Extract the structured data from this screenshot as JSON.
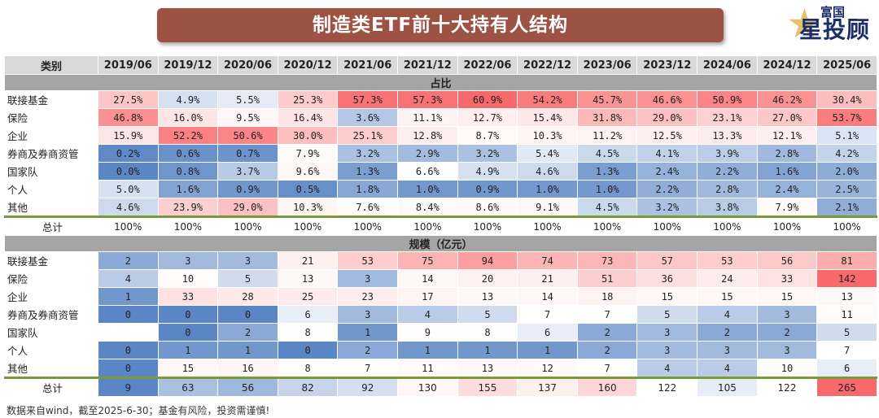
{
  "title": "制造类ETF前十大持有人结构",
  "logo": {
    "line1": "富国",
    "line2": "星投顾"
  },
  "table": {
    "header_label": "类别",
    "periods": [
      "2019/06",
      "2019/12",
      "2020/06",
      "2020/12",
      "2021/06",
      "2021/12",
      "2022/06",
      "2022/12",
      "2023/06",
      "2023/12",
      "2024/06",
      "2024/12",
      "2025/06"
    ],
    "share_section": {
      "label": "占比",
      "rows": [
        {
          "name": "联接基金",
          "values": [
            "27.5%",
            "4.9%",
            "5.5%",
            "25.3%",
            "57.3%",
            "57.3%",
            "60.9%",
            "54.2%",
            "45.7%",
            "46.6%",
            "50.9%",
            "46.2%",
            "30.4%"
          ],
          "nums": [
            27.5,
            4.9,
            5.5,
            25.3,
            57.3,
            57.3,
            60.9,
            54.2,
            45.7,
            46.6,
            50.9,
            46.2,
            30.4
          ]
        },
        {
          "name": "保险",
          "values": [
            "46.8%",
            "16.0%",
            "9.5%",
            "16.4%",
            "3.6%",
            "11.1%",
            "12.7%",
            "15.4%",
            "31.8%",
            "29.0%",
            "23.1%",
            "27.0%",
            "53.7%"
          ],
          "nums": [
            46.8,
            16.0,
            9.5,
            16.4,
            3.6,
            11.1,
            12.7,
            15.4,
            31.8,
            29.0,
            23.1,
            27.0,
            53.7
          ]
        },
        {
          "name": "企业",
          "values": [
            "15.9%",
            "52.2%",
            "50.6%",
            "30.0%",
            "25.1%",
            "12.8%",
            "8.7%",
            "10.3%",
            "11.2%",
            "12.5%",
            "13.3%",
            "12.1%",
            "5.1%"
          ],
          "nums": [
            15.9,
            52.2,
            50.6,
            30.0,
            25.1,
            12.8,
            8.7,
            10.3,
            11.2,
            12.5,
            13.3,
            12.1,
            5.1
          ]
        },
        {
          "name": "券商及券商资管",
          "values": [
            "0.2%",
            "0.6%",
            "0.7%",
            "7.9%",
            "3.2%",
            "2.9%",
            "3.2%",
            "5.4%",
            "4.5%",
            "4.1%",
            "3.9%",
            "2.8%",
            "4.2%"
          ],
          "nums": [
            0.2,
            0.6,
            0.7,
            7.9,
            3.2,
            2.9,
            3.2,
            5.4,
            4.5,
            4.1,
            3.9,
            2.8,
            4.2
          ]
        },
        {
          "name": "国家队",
          "values": [
            "0.0%",
            "0.8%",
            "3.7%",
            "9.6%",
            "1.3%",
            "6.6%",
            "4.9%",
            "4.6%",
            "1.3%",
            "2.4%",
            "2.2%",
            "1.6%",
            "2.0%"
          ],
          "nums": [
            0.0,
            0.8,
            3.7,
            9.6,
            1.3,
            6.6,
            4.9,
            4.6,
            1.3,
            2.4,
            2.2,
            1.6,
            2.0
          ]
        },
        {
          "name": "个人",
          "values": [
            "5.0%",
            "1.6%",
            "0.9%",
            "0.5%",
            "1.8%",
            "1.0%",
            "0.9%",
            "1.0%",
            "1.0%",
            "2.2%",
            "2.8%",
            "2.4%",
            "2.5%"
          ],
          "nums": [
            5.0,
            1.6,
            0.9,
            0.5,
            1.8,
            1.0,
            0.9,
            1.0,
            1.0,
            2.2,
            2.8,
            2.4,
            2.5
          ]
        },
        {
          "name": "其他",
          "values": [
            "4.6%",
            "23.9%",
            "29.0%",
            "10.3%",
            "7.6%",
            "8.4%",
            "8.6%",
            "9.1%",
            "4.5%",
            "3.2%",
            "3.8%",
            "7.9%",
            "2.1%"
          ],
          "nums": [
            4.6,
            23.9,
            29.0,
            10.3,
            7.6,
            8.4,
            8.6,
            9.1,
            4.5,
            3.2,
            3.8,
            7.9,
            2.1
          ]
        }
      ],
      "total": {
        "name": "总计",
        "values": [
          "100%",
          "100%",
          "100%",
          "100%",
          "100%",
          "100%",
          "100%",
          "100%",
          "100%",
          "100%",
          "100%",
          "100%",
          "100%"
        ]
      }
    },
    "size_section": {
      "label": "规模（亿元）",
      "rows": [
        {
          "name": "联接基金",
          "values": [
            "2",
            "3",
            "3",
            "21",
            "53",
            "75",
            "94",
            "74",
            "73",
            "57",
            "53",
            "56",
            "81"
          ],
          "nums": [
            2,
            3,
            3,
            21,
            53,
            75,
            94,
            74,
            73,
            57,
            53,
            56,
            81
          ]
        },
        {
          "name": "保险",
          "values": [
            "4",
            "10",
            "5",
            "13",
            "3",
            "14",
            "20",
            "21",
            "51",
            "36",
            "24",
            "33",
            "142"
          ],
          "nums": [
            4,
            10,
            5,
            13,
            3,
            14,
            20,
            21,
            51,
            36,
            24,
            33,
            142
          ]
        },
        {
          "name": "企业",
          "values": [
            "1",
            "33",
            "28",
            "25",
            "23",
            "17",
            "13",
            "14",
            "18",
            "15",
            "15",
            "15",
            "13"
          ],
          "nums": [
            1,
            33,
            28,
            25,
            23,
            17,
            13,
            14,
            18,
            15,
            15,
            15,
            13
          ]
        },
        {
          "name": "券商及券商资管",
          "values": [
            "0",
            "0",
            "0",
            "6",
            "3",
            "4",
            "5",
            "7",
            "7",
            "5",
            "4",
            "3",
            "11"
          ],
          "nums": [
            0,
            0,
            0,
            6,
            3,
            4,
            5,
            7,
            7,
            5,
            4,
            3,
            11
          ]
        },
        {
          "name": "国家队",
          "values": [
            "",
            "0",
            "2",
            "8",
            "1",
            "9",
            "8",
            "6",
            "2",
            "3",
            "2",
            "2",
            "5"
          ],
          "nums": [
            null,
            0,
            2,
            8,
            1,
            9,
            8,
            6,
            2,
            3,
            2,
            2,
            5
          ]
        },
        {
          "name": "个人",
          "values": [
            "0",
            "1",
            "1",
            "0",
            "2",
            "1",
            "1",
            "1",
            "2",
            "3",
            "3",
            "3",
            "7"
          ],
          "nums": [
            0,
            1,
            1,
            0,
            2,
            1,
            1,
            1,
            2,
            3,
            3,
            3,
            7
          ]
        },
        {
          "name": "其他",
          "values": [
            "0",
            "15",
            "16",
            "8",
            "7",
            "11",
            "13",
            "12",
            "7",
            "4",
            "4",
            "10",
            "6"
          ],
          "nums": [
            0,
            15,
            16,
            8,
            7,
            11,
            13,
            12,
            7,
            4,
            4,
            10,
            6
          ]
        }
      ],
      "total": {
        "name": "总计",
        "values": [
          "9",
          "63",
          "56",
          "82",
          "92",
          "130",
          "155",
          "137",
          "160",
          "122",
          "105",
          "122",
          "265"
        ],
        "nums": [
          9,
          63,
          56,
          82,
          92,
          130,
          155,
          137,
          160,
          122,
          105,
          122,
          265
        ]
      }
    },
    "colors": {
      "low": "#5b86c5",
      "mid": "#ffffff",
      "high": "#f8696b"
    }
  },
  "footnote": "数据来自wind，截至2025-6-30；基金有风险，投资需谨慎!"
}
